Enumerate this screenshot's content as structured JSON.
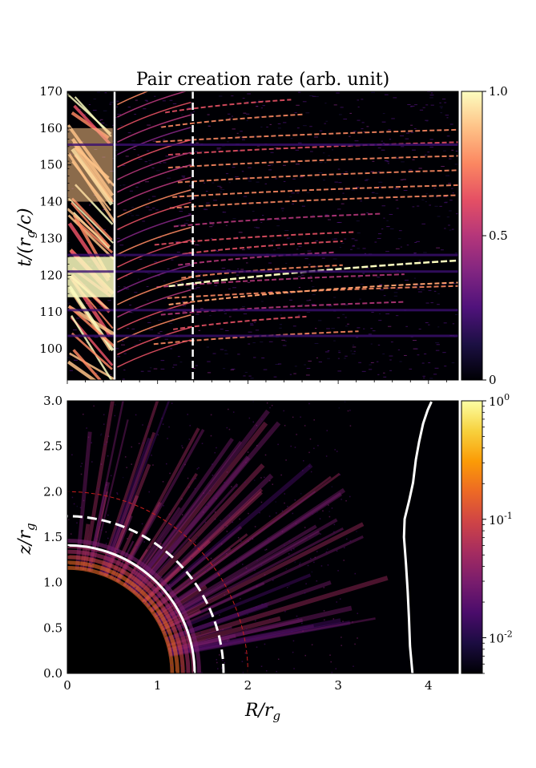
{
  "title": "Pair creation rate (arb. unit)",
  "colors": {
    "background": "#ffffff",
    "panel_bg": "#000004",
    "inferno": [
      "#000004",
      "#1b0c41",
      "#4a0c6b",
      "#781c6d",
      "#a52c60",
      "#cf4446",
      "#ed6925",
      "#fb9b06",
      "#f7d13d",
      "#fcffa4"
    ],
    "magma": [
      "#000004",
      "#1c1044",
      "#4f127b",
      "#812581",
      "#b5367a",
      "#e55064",
      "#fb8761",
      "#fec287",
      "#fcfdbf"
    ],
    "white_line": "#ffffff",
    "red_dashed": "#c81d1d"
  },
  "chart_data": [
    {
      "type": "heatmap",
      "panel": "top",
      "colormap": "magma",
      "xlim": [
        0,
        4.3
      ],
      "ylim": [
        91.5,
        170
      ],
      "ylabel": "t/(r_g/c)",
      "yticks": [
        "100",
        "110",
        "120",
        "130",
        "140",
        "150",
        "160",
        "170"
      ],
      "colorbar": {
        "range": [
          0,
          1.0
        ],
        "ticks": [
          "0",
          "0.5",
          "1.0"
        ],
        "scale": "linear"
      },
      "overlays": [
        {
          "style": "solid",
          "color": "white",
          "x": 0.52
        },
        {
          "style": "dashed",
          "color": "white",
          "x": 1.38
        }
      ],
      "bright_bands_t": [
        103,
        107,
        111,
        115.5,
        118.5,
        121,
        124.5,
        127.5,
        130,
        135,
        140,
        143,
        147,
        151,
        154.5,
        158,
        162,
        166
      ]
    },
    {
      "type": "heatmap",
      "panel": "bottom",
      "colormap": "inferno",
      "xlim": [
        0,
        4.33
      ],
      "ylim": [
        0,
        3.0
      ],
      "xlabel": "R/r_g",
      "ylabel": "z/r_g",
      "xticks": [
        "0",
        "1",
        "2",
        "3",
        "4"
      ],
      "yticks": [
        "0.0",
        "0.5",
        "1.0",
        "1.5",
        "2.0",
        "2.5",
        "3.0"
      ],
      "colorbar": {
        "range": [
          0.005,
          1.0
        ],
        "ticks": [
          "10^0",
          "10^-1",
          "10^-2"
        ],
        "scale": "log"
      },
      "overlays": [
        {
          "style": "solid",
          "color": "white",
          "shape": "circle",
          "radius": 1.41
        },
        {
          "style": "dashed",
          "color": "white",
          "shape": "circle",
          "radius": 1.73
        },
        {
          "style": "dashed",
          "color": "red",
          "shape": "circle",
          "radius": 2.0
        },
        {
          "style": "solid",
          "color": "white",
          "shape": "curve",
          "x": [
            3.82,
            3.8,
            3.78,
            3.76,
            3.75,
            3.73,
            3.74,
            3.78,
            3.82,
            3.86,
            3.9,
            3.95,
            4.0,
            4.02
          ],
          "y": [
            0.0,
            0.3,
            0.6,
            0.9,
            1.2,
            1.5,
            1.7,
            1.9,
            2.1,
            2.35,
            2.55,
            2.75,
            2.9,
            2.99
          ]
        }
      ],
      "horizon_radius": 1.14
    }
  ]
}
